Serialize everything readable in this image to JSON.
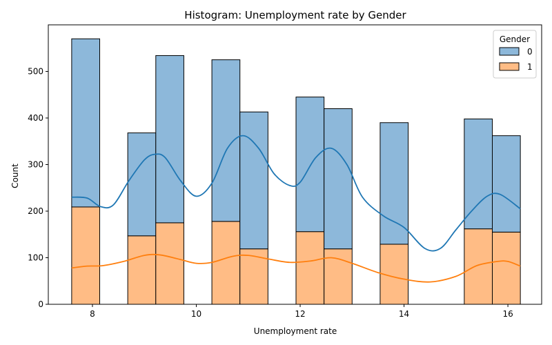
{
  "chart_data": {
    "type": "bar",
    "title": "Histogram: Unemployment rate by Gender",
    "xlabel": "Unemployment rate",
    "ylabel": "Count",
    "xlim": [
      7.15,
      16.65
    ],
    "ylim": [
      0,
      600
    ],
    "xticks": [
      8,
      10,
      12,
      14,
      16
    ],
    "yticks": [
      0,
      100,
      200,
      300,
      400,
      500
    ],
    "grid": false,
    "stacked": true,
    "legend": {
      "title": "Gender",
      "placement": "top-right"
    },
    "bins": [
      {
        "x0": 7.6,
        "x1": 8.14,
        "gender_0": 361,
        "gender_1": 209
      },
      {
        "x0": 8.68,
        "x1": 9.22,
        "gender_0": 221,
        "gender_1": 147
      },
      {
        "x0": 9.22,
        "x1": 9.76,
        "gender_0": 359,
        "gender_1": 175
      },
      {
        "x0": 10.3,
        "x1": 10.84,
        "gender_0": 347,
        "gender_1": 178
      },
      {
        "x0": 10.84,
        "x1": 11.38,
        "gender_0": 294,
        "gender_1": 119
      },
      {
        "x0": 11.92,
        "x1": 12.46,
        "gender_0": 289,
        "gender_1": 156
      },
      {
        "x0": 12.46,
        "x1": 13.0,
        "gender_0": 301,
        "gender_1": 119
      },
      {
        "x0": 13.54,
        "x1": 14.08,
        "gender_0": 261,
        "gender_1": 129
      },
      {
        "x0": 15.16,
        "x1": 15.7,
        "gender_0": 236,
        "gender_1": 162
      },
      {
        "x0": 15.7,
        "x1": 16.24,
        "gender_0": 207,
        "gender_1": 155
      }
    ],
    "series": [
      {
        "name": "0",
        "color": "#1f77b4",
        "fill": "#8db8da"
      },
      {
        "name": "1",
        "color": "#ff7f0e",
        "fill": "#ffbc85"
      }
    ],
    "kde": [
      {
        "name": "0",
        "x": [
          7.6,
          7.9,
          8.15,
          8.4,
          8.7,
          9.0,
          9.2,
          9.4,
          9.7,
          10.0,
          10.3,
          10.6,
          10.9,
          11.2,
          11.5,
          11.8,
          12.0,
          12.3,
          12.6,
          12.9,
          13.2,
          13.6,
          14.0,
          14.4,
          14.7,
          15.0,
          15.3,
          15.6,
          15.85,
          16.24
        ],
        "y": [
          230,
          228,
          210,
          213,
          265,
          310,
          322,
          315,
          265,
          232,
          260,
          335,
          362,
          335,
          280,
          255,
          262,
          315,
          335,
          300,
          230,
          190,
          165,
          120,
          120,
          160,
          200,
          232,
          236,
          205
        ]
      },
      {
        "name": "1",
        "x": [
          7.6,
          7.9,
          8.2,
          8.6,
          9.0,
          9.3,
          9.7,
          10.0,
          10.3,
          10.7,
          11.0,
          11.4,
          11.8,
          12.2,
          12.6,
          13.0,
          13.5,
          14.0,
          14.5,
          15.0,
          15.4,
          15.8,
          16.0,
          16.24
        ],
        "y": [
          78,
          82,
          83,
          92,
          105,
          106,
          96,
          88,
          90,
          103,
          105,
          97,
          90,
          93,
          100,
          88,
          68,
          54,
          48,
          60,
          83,
          92,
          92,
          82
        ]
      }
    ]
  }
}
